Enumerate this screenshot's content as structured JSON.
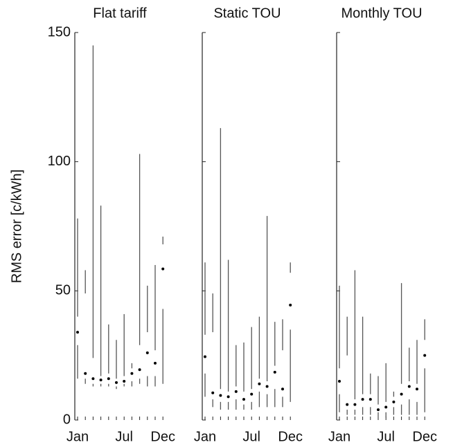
{
  "chart_data": [
    {
      "type": "box",
      "title": "Flat tariff",
      "ylabel": "RMS error [c/kWh]",
      "categories": [
        "Jan",
        null,
        null,
        null,
        null,
        null,
        "Jul",
        null,
        null,
        null,
        null,
        "Dec"
      ],
      "ylim": [
        0,
        150
      ],
      "yticks": [
        0,
        50,
        100,
        150
      ],
      "color": "#555555",
      "low": [
        16,
        14,
        13,
        13,
        13,
        12,
        13,
        13,
        14,
        13,
        13,
        14
      ],
      "q1": [
        29,
        16,
        14,
        14,
        14,
        13,
        14,
        15,
        16,
        17,
        17,
        43
      ],
      "median": [
        34,
        18,
        16,
        15.5,
        16,
        14.5,
        15,
        18,
        19.5,
        26,
        22,
        58.5
      ],
      "q3": [
        40,
        49,
        24,
        17,
        18,
        16,
        17,
        20,
        29,
        34,
        27,
        68
      ],
      "high": [
        78,
        58,
        145,
        83,
        37,
        31,
        41,
        22,
        103,
        52,
        60,
        71
      ]
    },
    {
      "type": "box",
      "title": "Static TOU",
      "categories": [
        "Jan",
        null,
        null,
        null,
        null,
        null,
        "Jul",
        null,
        null,
        null,
        null,
        "Dec"
      ],
      "ylim": [
        0,
        150
      ],
      "color": "#555555",
      "low": [
        9,
        5,
        4,
        4,
        4,
        4,
        4,
        5,
        5,
        5,
        5,
        7
      ],
      "q1": [
        18,
        8,
        7,
        7,
        8,
        6,
        7,
        11,
        10,
        12,
        9,
        35
      ],
      "median": [
        24.5,
        10.5,
        9.5,
        9,
        11,
        8,
        10,
        14,
        13,
        18.5,
        12,
        44.5
      ],
      "q3": [
        33,
        34,
        12,
        11,
        13,
        11,
        12,
        16,
        15,
        21,
        27,
        57
      ],
      "high": [
        61,
        49,
        113,
        62,
        29,
        30,
        36,
        40,
        79,
        38,
        39,
        61
      ]
    },
    {
      "type": "box",
      "title": "Monthly TOU",
      "categories": [
        "Jan",
        null,
        null,
        null,
        null,
        null,
        "Jul",
        null,
        null,
        null,
        null,
        "Dec"
      ],
      "ylim": [
        0,
        150
      ],
      "color": "#555555",
      "low": [
        3,
        2,
        2,
        2,
        2,
        1,
        1,
        2,
        2,
        2,
        2,
        3
      ],
      "q1": [
        10,
        4,
        4,
        5,
        5,
        3,
        3,
        5,
        6,
        8,
        7,
        20
      ],
      "median": [
        15,
        6,
        6,
        8,
        8,
        4,
        5,
        7,
        10,
        13,
        12,
        25
      ],
      "q3": [
        20,
        25,
        8,
        10,
        10,
        6,
        7,
        9,
        14,
        15,
        14,
        31
      ],
      "high": [
        52,
        40,
        58,
        40,
        18,
        17,
        22,
        11,
        53,
        28,
        31,
        39
      ]
    }
  ]
}
